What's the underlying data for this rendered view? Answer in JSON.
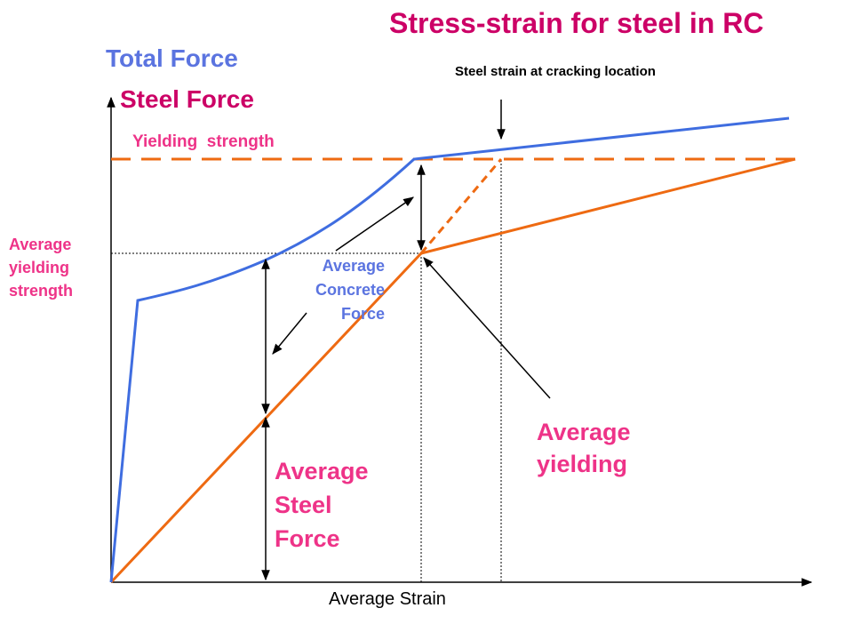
{
  "title": "Stress-strain for steel in RC",
  "y_axis": {
    "total_force_label": "Total Force",
    "steel_force_label": "Steel Force"
  },
  "x_axis": {
    "label": "Average Strain"
  },
  "annotations": {
    "crack_location": "Steel strain at cracking location",
    "yielding_strength": "Yielding  strength",
    "average_yielding_strength": [
      "Average",
      "yielding",
      "strength"
    ],
    "average_concrete_force": [
      "Average",
      "Concrete",
      "Force"
    ],
    "average_yielding": [
      "Average",
      "yielding"
    ],
    "average_steel_force": [
      "Average",
      "Steel",
      "Force"
    ]
  },
  "colors": {
    "title": "#cc0066",
    "total_force_curve": "#3f6de0",
    "steel_curve": "#ee6a12",
    "pink_labels": "#ee3388",
    "blue_labels": "#5b74e0",
    "axis": "#000000"
  }
}
